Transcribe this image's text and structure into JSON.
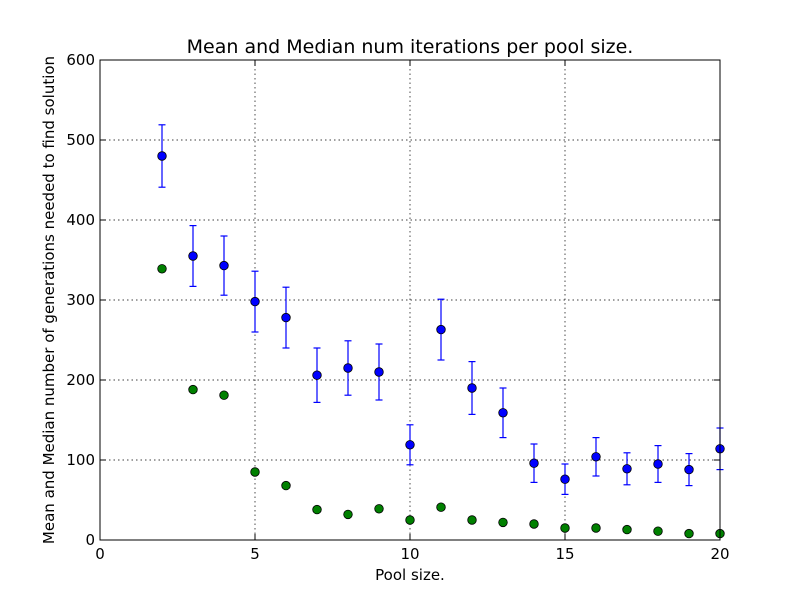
{
  "chart_data": {
    "type": "scatter",
    "title": "Mean and Median num iterations per pool size.",
    "xlabel": "Pool size.",
    "ylabel": "Mean and Median number of generations needed to find solution",
    "xlim": [
      0,
      20
    ],
    "ylim": [
      0,
      600
    ],
    "xticks": [
      0,
      5,
      10,
      15,
      20
    ],
    "yticks": [
      0,
      100,
      200,
      300,
      400,
      500,
      600
    ],
    "grid": true,
    "series": [
      {
        "color": "#0000ff",
        "errorbars": true,
        "points": [
          {
            "x": 2,
            "y": 480,
            "err": 39
          },
          {
            "x": 3,
            "y": 355,
            "err": 38
          },
          {
            "x": 4,
            "y": 343,
            "err": 37
          },
          {
            "x": 5,
            "y": 298,
            "err": 38
          },
          {
            "x": 6,
            "y": 278,
            "err": 38
          },
          {
            "x": 7,
            "y": 206,
            "err": 34
          },
          {
            "x": 8,
            "y": 215,
            "err": 34
          },
          {
            "x": 9,
            "y": 210,
            "err": 35
          },
          {
            "x": 10,
            "y": 119,
            "err": 25
          },
          {
            "x": 11,
            "y": 263,
            "err": 38
          },
          {
            "x": 12,
            "y": 190,
            "err": 33
          },
          {
            "x": 13,
            "y": 159,
            "err": 31
          },
          {
            "x": 14,
            "y": 96,
            "err": 24
          },
          {
            "x": 15,
            "y": 76,
            "err": 19
          },
          {
            "x": 16,
            "y": 104,
            "err": 24
          },
          {
            "x": 17,
            "y": 89,
            "err": 20
          },
          {
            "x": 18,
            "y": 95,
            "err": 23
          },
          {
            "x": 19,
            "y": 88,
            "err": 20
          },
          {
            "x": 20,
            "y": 114,
            "err": 26
          }
        ]
      },
      {
        "color": "#008000",
        "errorbars": false,
        "points": [
          {
            "x": 2,
            "y": 339
          },
          {
            "x": 3,
            "y": 188
          },
          {
            "x": 4,
            "y": 181
          },
          {
            "x": 5,
            "y": 85
          },
          {
            "x": 6,
            "y": 68
          },
          {
            "x": 7,
            "y": 38
          },
          {
            "x": 8,
            "y": 32
          },
          {
            "x": 9,
            "y": 39
          },
          {
            "x": 10,
            "y": 25
          },
          {
            "x": 11,
            "y": 41
          },
          {
            "x": 12,
            "y": 25
          },
          {
            "x": 13,
            "y": 22
          },
          {
            "x": 14,
            "y": 20
          },
          {
            "x": 15,
            "y": 15
          },
          {
            "x": 16,
            "y": 15
          },
          {
            "x": 17,
            "y": 13
          },
          {
            "x": 18,
            "y": 11
          },
          {
            "x": 19,
            "y": 8
          },
          {
            "x": 20,
            "y": 8
          }
        ]
      }
    ]
  }
}
